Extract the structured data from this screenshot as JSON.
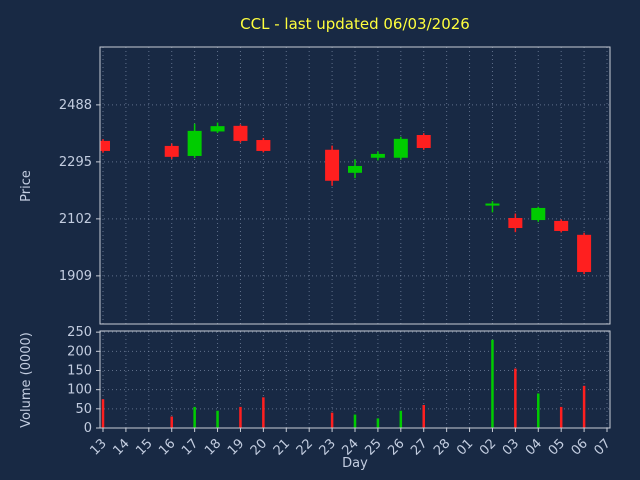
{
  "chart_data": {
    "type": "candlestick",
    "title": "CCL - last updated 06/03/2026",
    "xlabel": "Day",
    "ylabel_price": "Price",
    "ylabel_volume": "Volume (0000)",
    "days": [
      "13",
      "14",
      "15",
      "16",
      "17",
      "18",
      "19",
      "20",
      "21",
      "22",
      "23",
      "24",
      "25",
      "26",
      "27",
      "28",
      "01",
      "02",
      "03",
      "04",
      "05",
      "06",
      "07"
    ],
    "price_ticks": [
      2488,
      2295,
      2102,
      1909
    ],
    "volume_ticks": [
      0,
      50,
      100,
      150,
      200,
      250
    ],
    "price_range": [
      1746,
      2684
    ],
    "volume_range": [
      0,
      253
    ],
    "grid": true,
    "candles": [
      {
        "day": "13",
        "open": 2366,
        "high": 2372,
        "low": 2326,
        "close": 2332,
        "dir": "down"
      },
      {
        "day": "16",
        "open": 2349,
        "high": 2357,
        "low": 2305,
        "close": 2312,
        "dir": "down"
      },
      {
        "day": "17",
        "open": 2315,
        "high": 2424,
        "low": 2308,
        "close": 2400,
        "dir": "up"
      },
      {
        "day": "18",
        "open": 2398,
        "high": 2428,
        "low": 2393,
        "close": 2416,
        "dir": "up"
      },
      {
        "day": "19",
        "open": 2417,
        "high": 2422,
        "low": 2360,
        "close": 2366,
        "dir": "down"
      },
      {
        "day": "20",
        "open": 2369,
        "high": 2376,
        "low": 2327,
        "close": 2332,
        "dir": "down"
      },
      {
        "day": "23",
        "open": 2336,
        "high": 2350,
        "low": 2214,
        "close": 2231,
        "dir": "down"
      },
      {
        "day": "24",
        "open": 2258,
        "high": 2303,
        "low": 2240,
        "close": 2281,
        "dir": "up"
      },
      {
        "day": "25",
        "open": 2309,
        "high": 2330,
        "low": 2300,
        "close": 2322,
        "dir": "up"
      },
      {
        "day": "26",
        "open": 2309,
        "high": 2380,
        "low": 2302,
        "close": 2373,
        "dir": "up"
      },
      {
        "day": "27",
        "open": 2386,
        "high": 2392,
        "low": 2336,
        "close": 2342,
        "dir": "down"
      },
      {
        "day": "02",
        "open": 2147,
        "high": 2162,
        "low": 2124,
        "close": 2154,
        "dir": "up"
      },
      {
        "day": "03",
        "open": 2105,
        "high": 2120,
        "low": 2057,
        "close": 2071,
        "dir": "down"
      },
      {
        "day": "04",
        "open": 2098,
        "high": 2143,
        "low": 2092,
        "close": 2139,
        "dir": "up"
      },
      {
        "day": "05",
        "open": 2095,
        "high": 2100,
        "low": 2056,
        "close": 2061,
        "dir": "down"
      },
      {
        "day": "06",
        "open": 2048,
        "high": 2055,
        "low": 1915,
        "close": 1922,
        "dir": "down"
      }
    ],
    "volumes": [
      {
        "day": "13",
        "value": 75,
        "dir": "down"
      },
      {
        "day": "16",
        "value": 30,
        "dir": "down"
      },
      {
        "day": "17",
        "value": 55,
        "dir": "up"
      },
      {
        "day": "18",
        "value": 45,
        "dir": "up"
      },
      {
        "day": "19",
        "value": 55,
        "dir": "down"
      },
      {
        "day": "20",
        "value": 80,
        "dir": "down"
      },
      {
        "day": "23",
        "value": 40,
        "dir": "down"
      },
      {
        "day": "24",
        "value": 35,
        "dir": "up"
      },
      {
        "day": "25",
        "value": 25,
        "dir": "up"
      },
      {
        "day": "26",
        "value": 45,
        "dir": "up"
      },
      {
        "day": "27",
        "value": 60,
        "dir": "down"
      },
      {
        "day": "02",
        "value": 230,
        "dir": "up"
      },
      {
        "day": "03",
        "value": 155,
        "dir": "down"
      },
      {
        "day": "04",
        "value": 90,
        "dir": "up"
      },
      {
        "day": "05",
        "value": 55,
        "dir": "down"
      },
      {
        "day": "06",
        "value": 110,
        "dir": "down"
      }
    ],
    "colors": {
      "up": "#00cc00",
      "down": "#ff1f1f",
      "title": "#ffff3d",
      "text": "#c3cde0",
      "background": "#182944",
      "grid": "#9aa9c4",
      "border": "#c8cdd6"
    }
  }
}
